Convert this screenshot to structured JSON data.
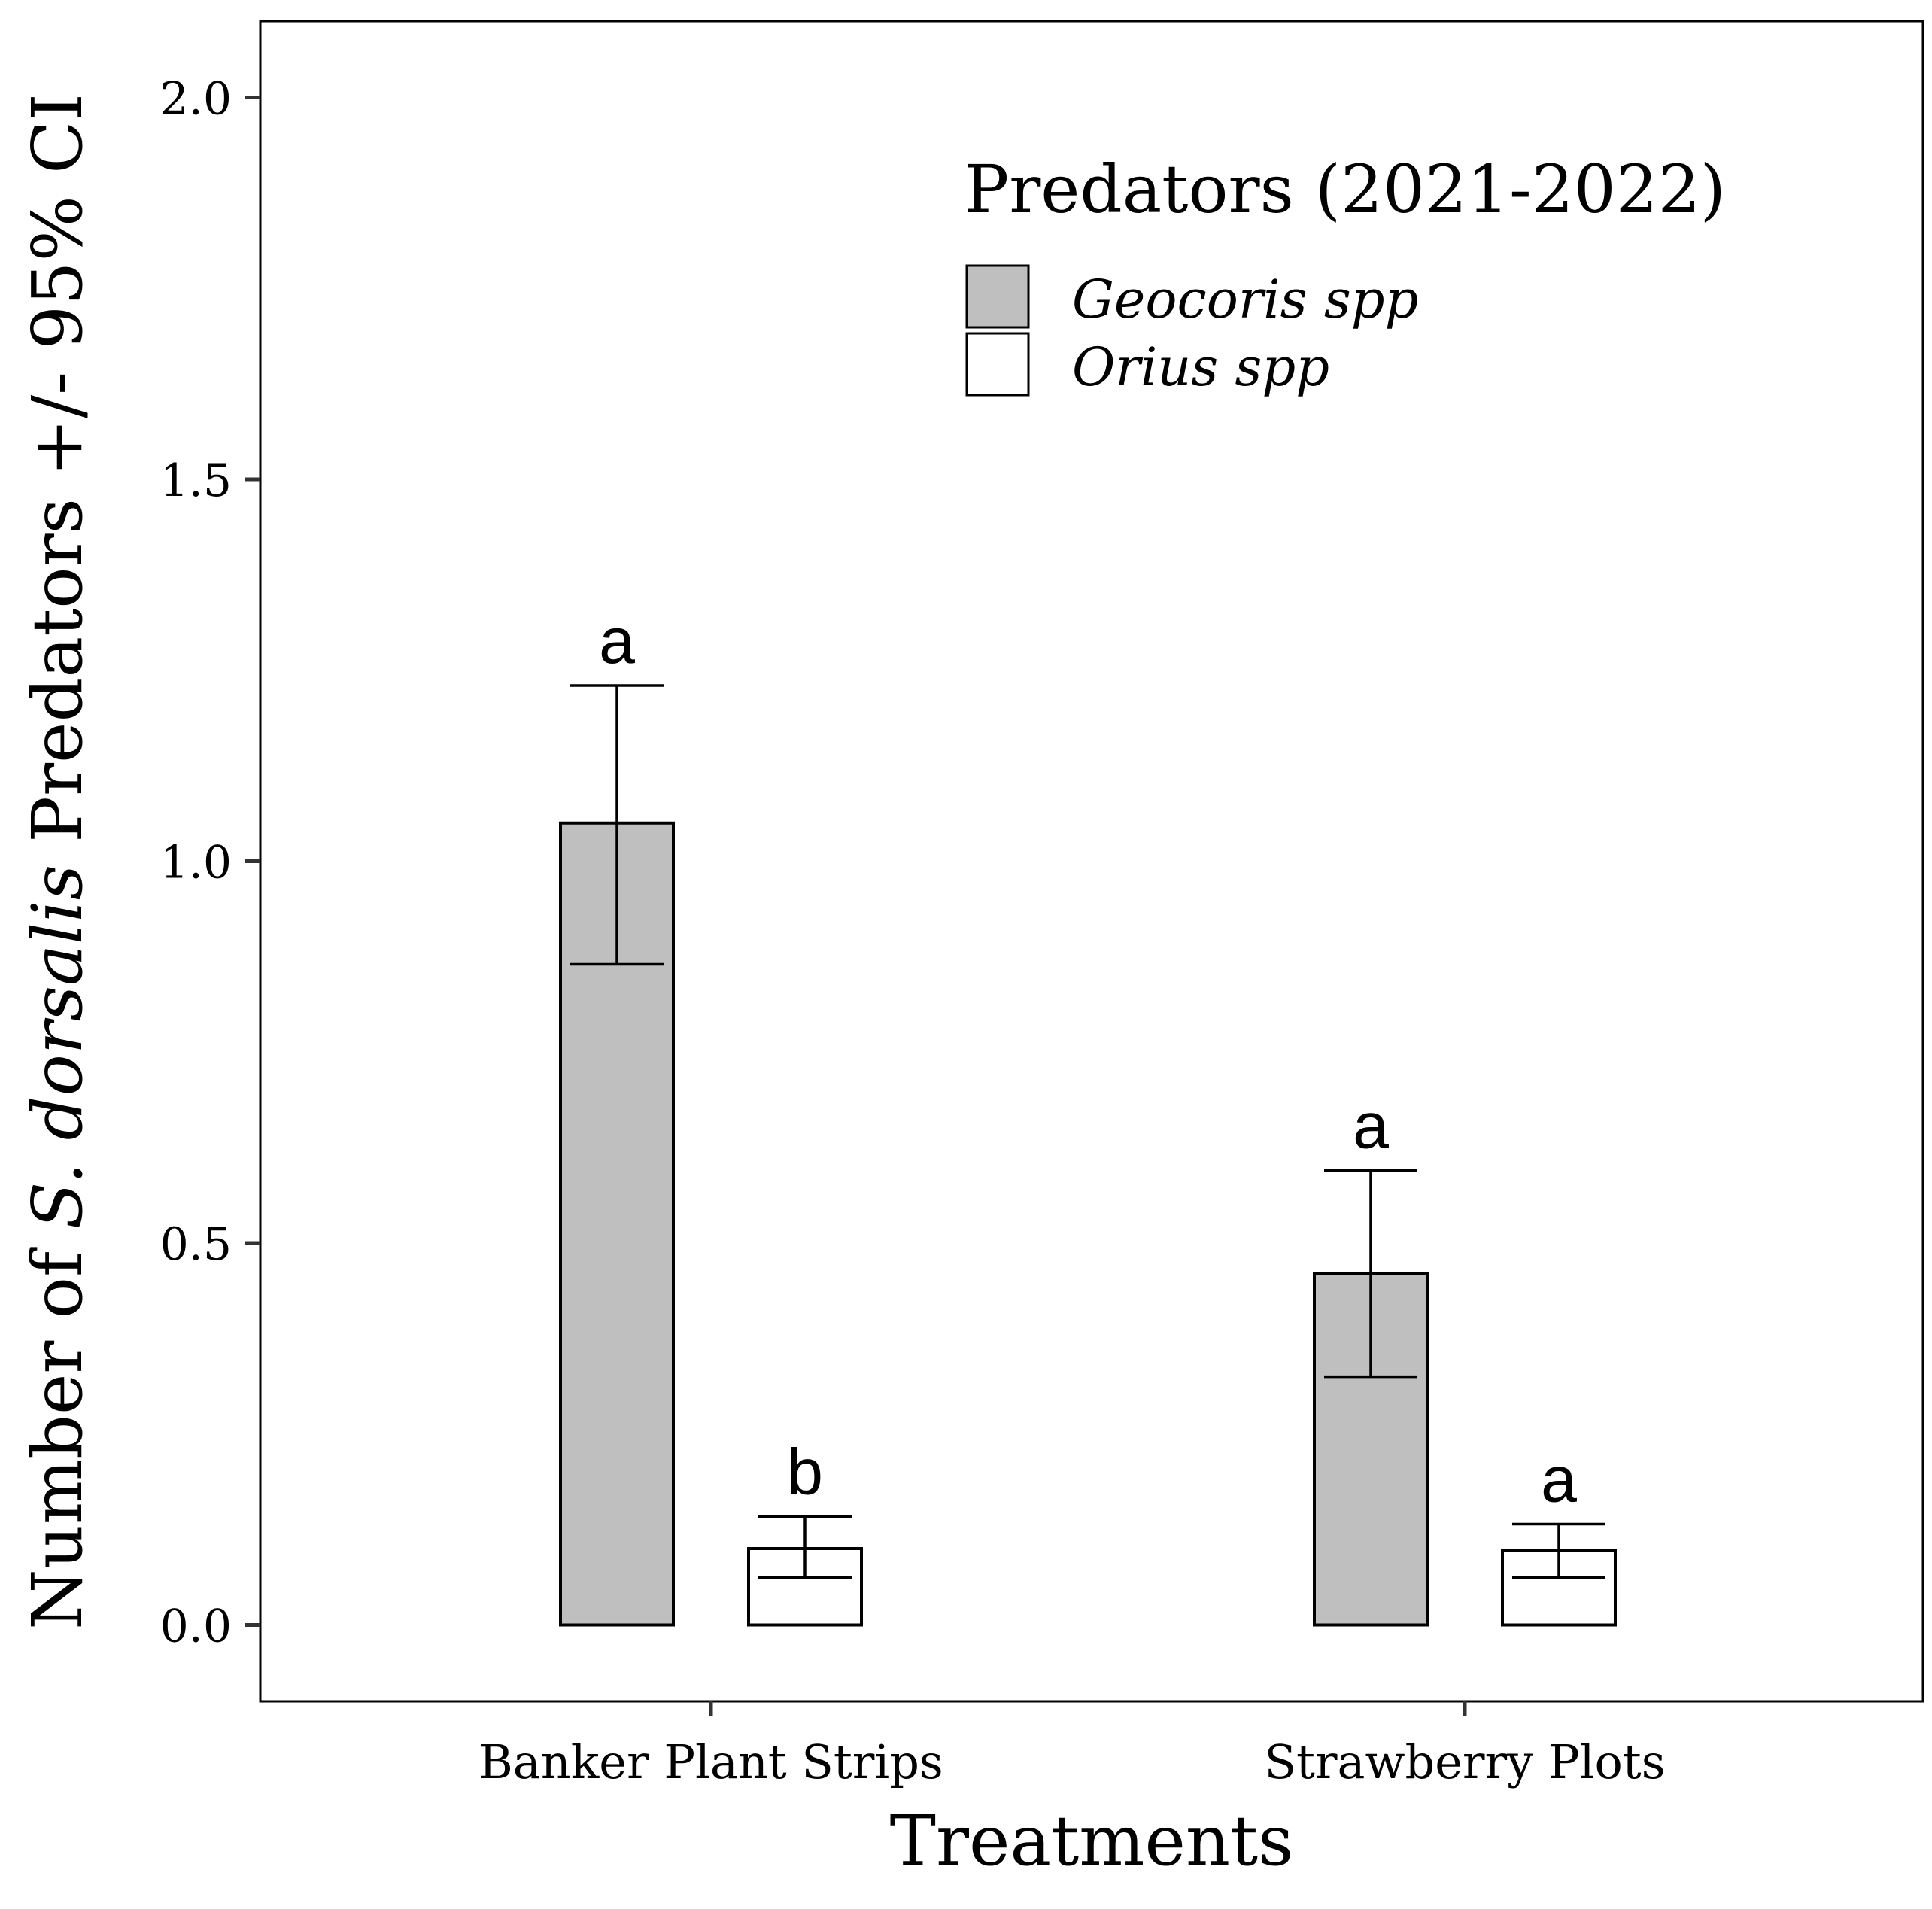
{
  "chart_data": {
    "type": "bar",
    "title": "",
    "xlabel": "Treatments",
    "ylabel": {
      "prefix": "Number of ",
      "species": "S. dorsalis",
      "suffix": " Predators +/- 95% CI"
    },
    "ylim": [
      -0.1,
      2.1
    ],
    "yticks": [
      0.0,
      0.5,
      1.0,
      1.5,
      2.0
    ],
    "ytick_labels": [
      "0.0",
      "0.5",
      "1.0",
      "1.5",
      "2.0"
    ],
    "categories": [
      "Banker Plant Strips",
      "Strawberry Plots"
    ],
    "grid": false,
    "legend": {
      "title": "Predators (2021-2022)",
      "placement": "top-right"
    },
    "series": [
      {
        "name": "Geocoris spp",
        "color": "#bfbfbf",
        "values": [
          1.05,
          0.46
        ],
        "ci_low": [
          0.865,
          0.325
        ],
        "ci_high": [
          1.23,
          0.595
        ],
        "letters": [
          "a",
          "a"
        ]
      },
      {
        "name": "Orius spp",
        "color": "#ffffff",
        "values": [
          0.1,
          0.098
        ],
        "ci_low": [
          0.062,
          0.062
        ],
        "ci_high": [
          0.142,
          0.132
        ],
        "letters": [
          "b",
          "a"
        ]
      }
    ]
  }
}
